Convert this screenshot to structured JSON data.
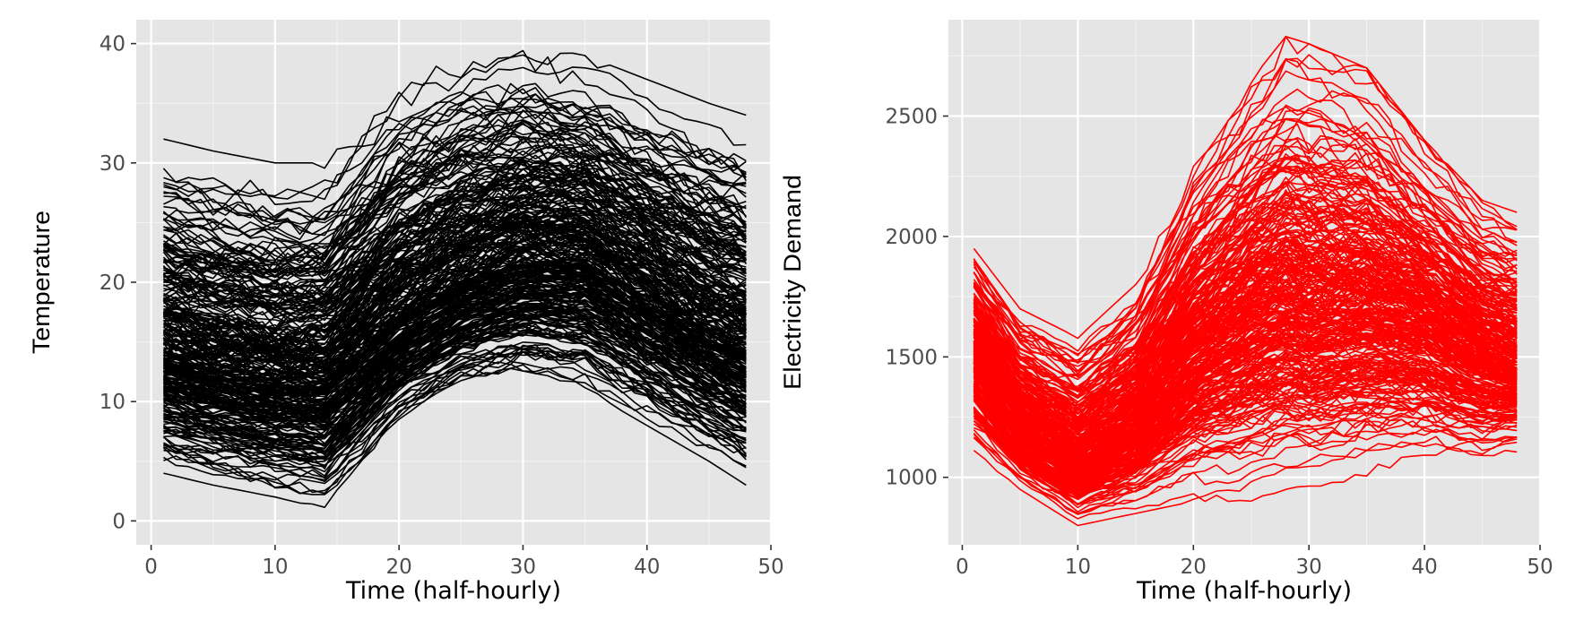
{
  "chart_data": [
    {
      "type": "line",
      "ylabel": "Temperature",
      "xlabel": "Time (half-hourly)",
      "xlim": [
        -1.2,
        50
      ],
      "ylim": [
        -2,
        42
      ],
      "x_ticks": [
        0,
        10,
        20,
        30,
        40,
        50
      ],
      "y_ticks": [
        0,
        10,
        20,
        30,
        40
      ],
      "x_tick_labels": [
        "0",
        "10",
        "20",
        "30",
        "40",
        "50"
      ],
      "y_tick_labels": [
        "0",
        "10",
        "20",
        "30",
        "40"
      ],
      "grid": true,
      "color": "#000000",
      "x": [
        1,
        48
      ],
      "series_count_approx": 300,
      "series_note": "many overlapping daily profiles, 48 half-hourly points each",
      "envelope": {
        "x": [
          1,
          5,
          10,
          14,
          20,
          25,
          30,
          35,
          40,
          45,
          48
        ],
        "upper": [
          32,
          31,
          30,
          30,
          37,
          39,
          40,
          39,
          37,
          35,
          34
        ],
        "median": [
          14,
          13,
          12,
          12,
          17,
          20,
          22,
          22,
          19,
          16,
          15
        ],
        "lower": [
          4,
          3,
          2,
          1,
          8,
          11,
          12,
          11,
          8,
          5,
          3
        ]
      }
    },
    {
      "type": "line",
      "ylabel": "Electricity Demand",
      "xlabel": "Time (half-hourly)",
      "xlim": [
        -1.2,
        50
      ],
      "ylim": [
        720,
        2900
      ],
      "x_ticks": [
        0,
        10,
        20,
        30,
        40,
        50
      ],
      "y_ticks": [
        1000,
        1500,
        2000,
        2500
      ],
      "x_tick_labels": [
        "0",
        "10",
        "20",
        "30",
        "40",
        "50"
      ],
      "y_tick_labels": [
        "1000",
        "1500",
        "2000",
        "2500"
      ],
      "grid": true,
      "color": "#ff0000",
      "x": [
        1,
        48
      ],
      "series_count_approx": 300,
      "series_note": "many overlapping daily profiles, 48 half-hourly points each",
      "envelope": {
        "x": [
          1,
          5,
          10,
          15,
          20,
          25,
          28,
          30,
          35,
          40,
          45,
          48
        ],
        "upper": [
          1950,
          1700,
          1580,
          1800,
          2300,
          2650,
          2830,
          2800,
          2700,
          2400,
          2150,
          2100
        ],
        "median": [
          1500,
          1200,
          1050,
          1200,
          1500,
          1650,
          1700,
          1680,
          1700,
          1650,
          1500,
          1450
        ],
        "lower": [
          1100,
          950,
          800,
          850,
          900,
          900,
          950,
          950,
          1000,
          1050,
          1050,
          1100
        ]
      }
    }
  ]
}
